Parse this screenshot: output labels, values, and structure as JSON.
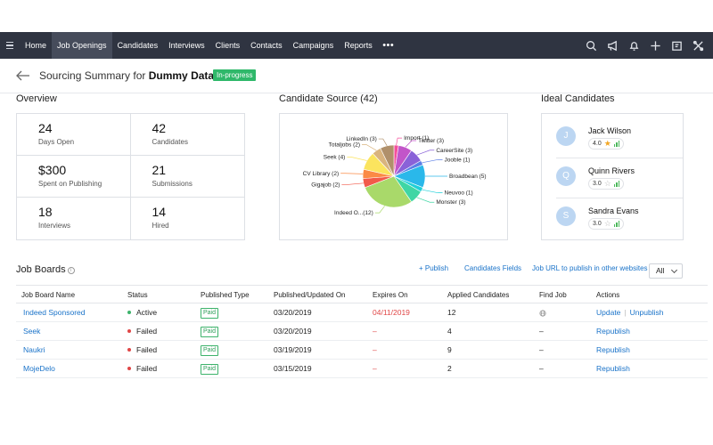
{
  "nav": {
    "items": [
      "Home",
      "Job Openings",
      "Candidates",
      "Interviews",
      "Clients",
      "Contacts",
      "Campaigns",
      "Reports"
    ],
    "more": "•••",
    "icons": [
      "search-icon",
      "megaphone-icon",
      "bell-icon",
      "plus-icon",
      "calendar-icon",
      "tools-icon"
    ]
  },
  "header": {
    "title_prefix": "Sourcing Summary for ",
    "title_name": "Dummy Data",
    "title_suffix": " -",
    "status": "In-progress",
    "status_color": "#2fb86a"
  },
  "overview": {
    "title": "Overview",
    "stats": [
      {
        "value": "24",
        "label": "Days Open"
      },
      {
        "value": "42",
        "label": "Candidates"
      },
      {
        "value": "$300",
        "label": "Spent on Publishing"
      },
      {
        "value": "21",
        "label": "Submissions"
      },
      {
        "value": "18",
        "label": "Interviews"
      },
      {
        "value": "14",
        "label": "Hired"
      }
    ]
  },
  "source": {
    "title": "Candidate Source (42)"
  },
  "chart_data": {
    "type": "pie",
    "slices": [
      {
        "label": "Import (1)",
        "value": 1,
        "color": "#f4509c"
      },
      {
        "label": "Twitter (3)",
        "value": 3,
        "color": "#c255c9"
      },
      {
        "label": "CareerSite (3)",
        "value": 3,
        "color": "#8a62d8"
      },
      {
        "label": "Jooble (1)",
        "value": 1,
        "color": "#5b7fe6"
      },
      {
        "label": "Broadbean (5)",
        "value": 5,
        "color": "#2ab8ea"
      },
      {
        "label": "Neuvoo (1)",
        "value": 1,
        "color": "#1fd0d8"
      },
      {
        "label": "Monster (3)",
        "value": 3,
        "color": "#3fd6a4"
      },
      {
        "label": "Indeed O...(12)",
        "value": 12,
        "color": "#a9d96a"
      },
      {
        "label": "Gigajob (2)",
        "value": 2,
        "color": "#f25a4a"
      },
      {
        "label": "CV Library (2)",
        "value": 2,
        "color": "#fb8a45"
      },
      {
        "label": "Seek (4)",
        "value": 4,
        "color": "#fbe45e"
      },
      {
        "label": "Totaljobs (2)",
        "value": 2,
        "color": "#d9b47e"
      },
      {
        "label": "LinkedIn (3)",
        "value": 3,
        "color": "#b0906a"
      }
    ]
  },
  "ideal": {
    "title": "Ideal Candidates",
    "candidates": [
      {
        "initial": "J",
        "name": "Jack Wilson",
        "rating": "4.0",
        "full_star": true
      },
      {
        "initial": "Q",
        "name": "Quinn Rivers",
        "rating": "3.0",
        "full_star": false
      },
      {
        "initial": "S",
        "name": "Sandra Evans",
        "rating": "3.0",
        "full_star": false
      }
    ]
  },
  "job_boards": {
    "title": "Job Boards",
    "publish": "+ Publish",
    "candidates_fields": "Candidates Fields",
    "job_url": "Job URL to publish in other websites",
    "filter": "All",
    "columns": [
      "Job Board Name",
      "Status",
      "Published Type",
      "Published/Updated On",
      "Expires On",
      "Applied Candidates",
      "Find Job",
      "Actions"
    ],
    "rows": [
      {
        "name": "Indeed Sponsored",
        "status": "Active",
        "status_color": "#3db36b",
        "type": "Paid",
        "published": "03/20/2019",
        "expires": "04/11/2019",
        "applied": "12",
        "find": "globe-icon",
        "actions": [
          "Update",
          "Unpublish"
        ]
      },
      {
        "name": "Seek",
        "status": "Failed",
        "status_color": "#e04646",
        "type": "Paid",
        "published": "03/20/2019",
        "expires": "–",
        "applied": "4",
        "find": "–",
        "actions": [
          "Republish"
        ]
      },
      {
        "name": "Naukri",
        "status": "Failed",
        "status_color": "#e04646",
        "type": "Paid",
        "published": "03/19/2019",
        "expires": "–",
        "applied": "9",
        "find": "–",
        "actions": [
          "Republish"
        ]
      },
      {
        "name": "MojeDelo",
        "status": "Failed",
        "status_color": "#e04646",
        "type": "Paid",
        "published": "03/15/2019",
        "expires": "–",
        "applied": "2",
        "find": "–",
        "actions": [
          "Republish"
        ]
      }
    ]
  }
}
